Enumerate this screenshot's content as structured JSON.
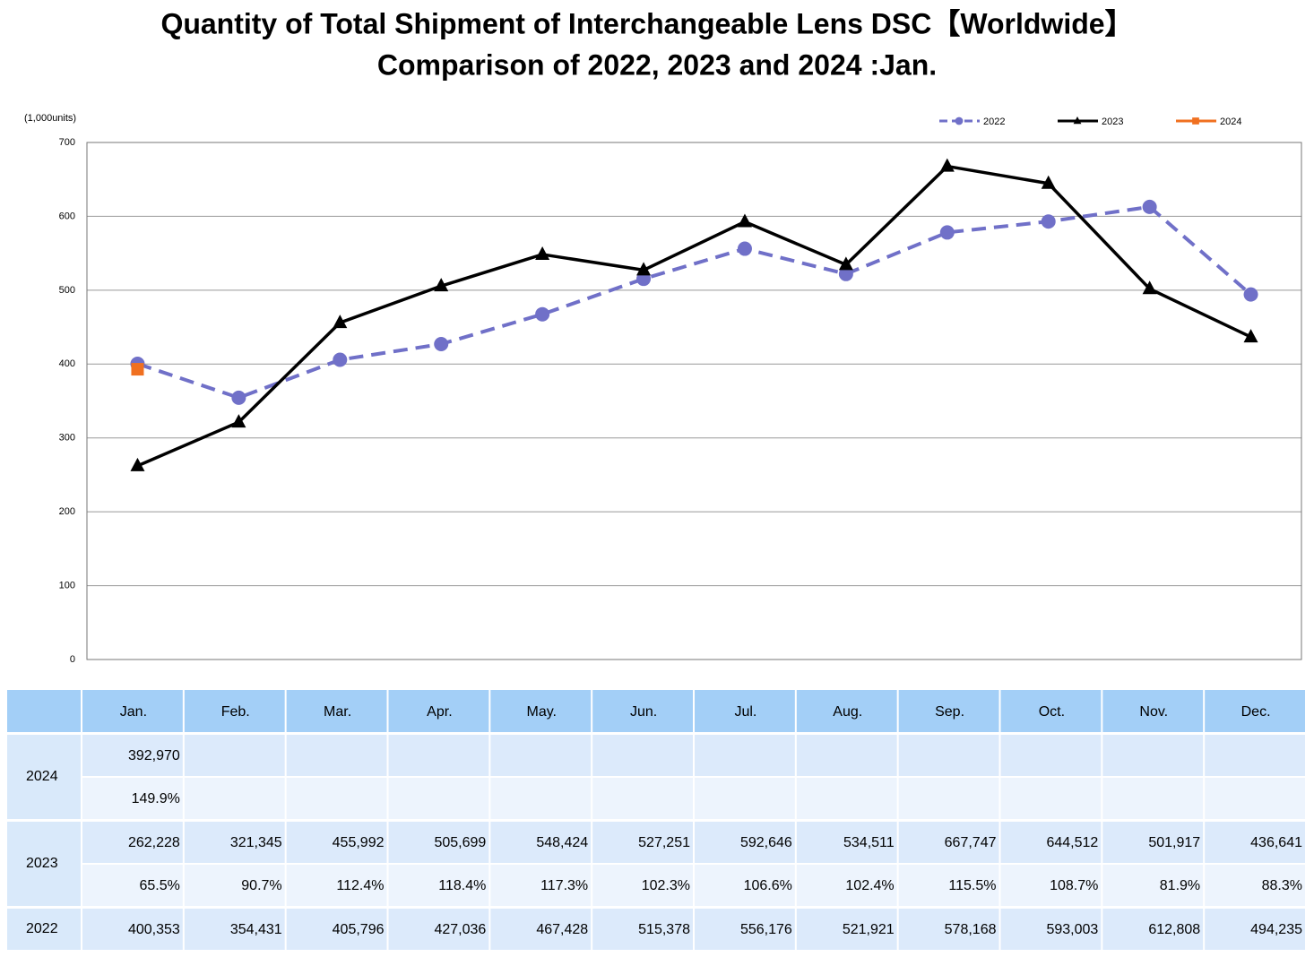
{
  "chart_data": {
    "type": "line",
    "title": "Quantity of Total Shipment of Interchangeable Lens DSC【Worldwide】",
    "subtitle": "Comparison of 2022, 2023 and 2024 :Jan.",
    "y_label": "(1,000units)",
    "categories": [
      "Jan.",
      "Feb.",
      "Mar.",
      "Apr.",
      "May.",
      "Jun.",
      "Jul.",
      "Aug.",
      "Sep.",
      "Oct.",
      "Nov.",
      "Dec."
    ],
    "ylim": [
      0,
      700
    ],
    "yticks": [
      0,
      100,
      200,
      300,
      400,
      500,
      600,
      700
    ],
    "grid": true,
    "legend": "top-right",
    "series": [
      {
        "name": "2022",
        "color": "#7070c8",
        "dashed": true,
        "marker": "circle",
        "values": [
          400.353,
          354.431,
          405.796,
          427.036,
          467.428,
          515.378,
          556.176,
          521.921,
          578.168,
          593.003,
          612.808,
          494.235
        ],
        "value_labels": [
          "400,353",
          "354,431",
          "405,796",
          "427,036",
          "467,428",
          "515,378",
          "556,176",
          "521,921",
          "578,168",
          "593,003",
          "612,808",
          "494,235"
        ]
      },
      {
        "name": "2023",
        "color": "#000000",
        "dashed": false,
        "marker": "triangle",
        "values": [
          262.228,
          321.345,
          455.992,
          505.699,
          548.424,
          527.251,
          592.646,
          534.511,
          667.747,
          644.512,
          501.917,
          436.641
        ],
        "value_labels": [
          "262,228",
          "321,345",
          "455,992",
          "505,699",
          "548,424",
          "527,251",
          "592,646",
          "534,511",
          "667,747",
          "644,512",
          "501,917",
          "436,641"
        ],
        "yoy_labels": [
          "65.5%",
          "90.7%",
          "112.4%",
          "118.4%",
          "117.3%",
          "102.3%",
          "106.6%",
          "102.4%",
          "115.5%",
          "108.7%",
          "81.9%",
          "88.3%"
        ]
      },
      {
        "name": "2024",
        "color": "#f07020",
        "dashed": false,
        "marker": "square",
        "values": [
          392.97,
          null,
          null,
          null,
          null,
          null,
          null,
          null,
          null,
          null,
          null,
          null
        ],
        "value_labels": [
          "392,970",
          null,
          null,
          null,
          null,
          null,
          null,
          null,
          null,
          null,
          null,
          null
        ],
        "yoy_labels": [
          "149.9%",
          null,
          null,
          null,
          null,
          null,
          null,
          null,
          null,
          null,
          null,
          null
        ]
      }
    ]
  }
}
